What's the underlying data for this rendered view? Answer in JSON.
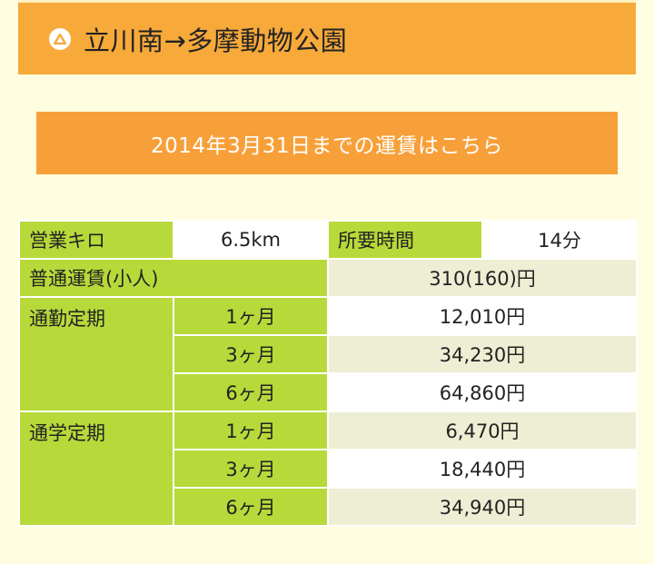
{
  "header": {
    "route": "立川南→多摩動物公園",
    "icon": "triangle-up-circle-icon"
  },
  "old_fare_link": "2014年3月31日までの運賃はこちら",
  "summary": {
    "distance_label": "営業キロ",
    "distance_value": "6.5km",
    "time_label": "所要時間",
    "time_value": "14分"
  },
  "regular_fare": {
    "label": "普通運賃(小人)",
    "value": "310(160)円"
  },
  "commuter_pass": {
    "label": "通勤定期",
    "rows": [
      {
        "period": "1ヶ月",
        "price": "12,010円"
      },
      {
        "period": "3ヶ月",
        "price": "34,230円"
      },
      {
        "period": "6ヶ月",
        "price": "64,860円"
      }
    ]
  },
  "student_pass": {
    "label": "通学定期",
    "rows": [
      {
        "period": "1ヶ月",
        "price": "6,470円"
      },
      {
        "period": "3ヶ月",
        "price": "18,440円"
      },
      {
        "period": "6ヶ月",
        "price": "34,940円"
      }
    ]
  },
  "colors": {
    "header_orange": "#f7a93a",
    "button_orange": "#f7a03a",
    "label_green": "#b8d93a",
    "value_light": "#eeeed4",
    "background": "#fffde0"
  }
}
